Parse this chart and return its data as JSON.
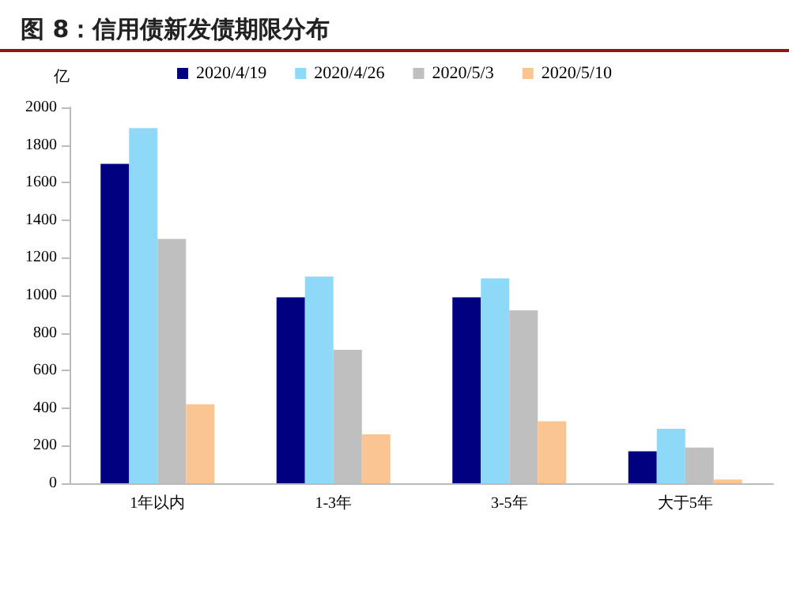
{
  "chart_data": {
    "type": "bar",
    "title": "图 8：信用债新发债期限分布",
    "ylabel": "亿",
    "categories": [
      "1年以内",
      "1-3年",
      "3-5年",
      "大于5年"
    ],
    "series": [
      {
        "name": "2020/4/19",
        "color": "#000080",
        "values": [
          1700,
          990,
          990,
          170
        ]
      },
      {
        "name": "2020/4/26",
        "color": "#8ed8f8",
        "values": [
          1890,
          1100,
          1090,
          290
        ]
      },
      {
        "name": "2020/5/3",
        "color": "#bfbfbf",
        "values": [
          1300,
          710,
          920,
          190
        ]
      },
      {
        "name": "2020/5/10",
        "color": "#fbc593",
        "values": [
          420,
          260,
          330,
          20
        ]
      }
    ],
    "ylim": [
      0,
      2000
    ],
    "yticks": [
      0,
      200,
      400,
      600,
      800,
      1000,
      1200,
      1400,
      1600,
      1800,
      2000
    ],
    "grid": false,
    "legend": "top"
  }
}
